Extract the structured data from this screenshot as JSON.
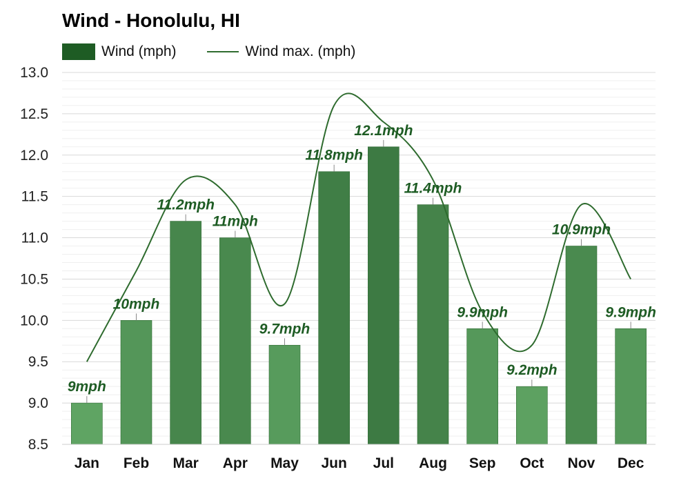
{
  "title": "Wind - Honolulu, HI",
  "legend": {
    "bar_label": "Wind (mph)",
    "line_label": "Wind max. (mph)"
  },
  "colors": {
    "bar_light": "#5fa463",
    "bar_dark": "#3d7a43",
    "line": "#2e6b2e",
    "label": "#1e5c24",
    "grid": "#dddddd"
  },
  "chart_data": {
    "type": "bar",
    "title": "Wind - Honolulu, HI",
    "categories": [
      "Jan",
      "Feb",
      "Mar",
      "Apr",
      "May",
      "Jun",
      "Jul",
      "Aug",
      "Sep",
      "Oct",
      "Nov",
      "Dec"
    ],
    "series": [
      {
        "name": "Wind (mph)",
        "type": "bar",
        "values": [
          9.0,
          10.0,
          11.2,
          11.0,
          9.7,
          11.8,
          12.1,
          11.4,
          9.9,
          9.2,
          10.9,
          9.9
        ],
        "labels": [
          "9mph",
          "10mph",
          "11.2mph",
          "11mph",
          "9.7mph",
          "11.8mph",
          "12.1mph",
          "11.4mph",
          "9.9mph",
          "9.2mph",
          "10.9mph",
          "9.9mph"
        ]
      },
      {
        "name": "Wind max. (mph)",
        "type": "line",
        "values": [
          9.5,
          10.6,
          11.7,
          11.4,
          10.2,
          12.6,
          12.4,
          11.7,
          10.1,
          9.7,
          11.4,
          10.5
        ]
      }
    ],
    "ylim": [
      8.5,
      13.0
    ],
    "yticks": [
      "13.0",
      "12.5",
      "12.0",
      "11.5",
      "11.0",
      "10.5",
      "10.0",
      "9.5",
      "9.0",
      "8.5"
    ],
    "xlabel": "",
    "ylabel": "",
    "grid": true,
    "legend_position": "top-left"
  }
}
